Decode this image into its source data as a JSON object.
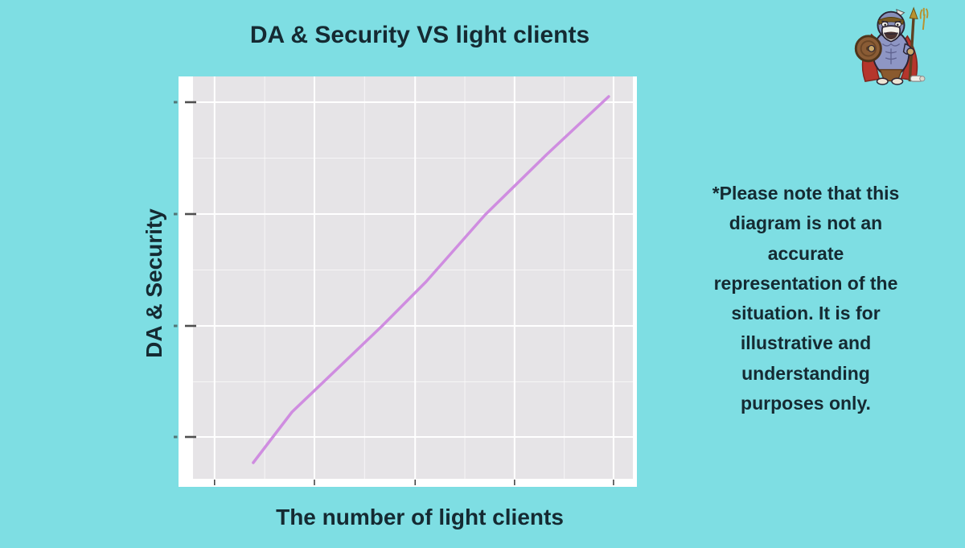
{
  "page": {
    "background": "#7EDEE3",
    "text_color": "#152A32"
  },
  "header": {
    "title": "DA & Security VS light clients"
  },
  "chart": {
    "xlabel": "The number of light clients",
    "ylabel": "DA & Security",
    "panel_bg": "#E6E4E7",
    "grid_color": "#FFFFFF",
    "line_color": "#CF8DE0",
    "tick_color": "#3C3C3C"
  },
  "note": {
    "lines": [
      "*Please note that this",
      "diagram is not an",
      "accurate",
      "representation of the",
      "situation. It is for",
      "illustrative and",
      "understanding",
      "purposes only."
    ]
  },
  "icons": {
    "mascot": "warrior-penguin-mascot"
  },
  "chart_data": {
    "type": "line",
    "title": "DA & Security VS light clients",
    "xlabel": "The number of light clients",
    "ylabel": "DA & Security",
    "xlim": [
      0,
      100
    ],
    "ylim": [
      0,
      100
    ],
    "grid": true,
    "legend": "none",
    "axis_tick_labels_visible": false,
    "x": [
      13.7,
      22.5,
      43.0,
      53.0,
      66.4,
      80.4,
      94.5
    ],
    "series": [
      {
        "name": "DA & Security",
        "values": [
          4.0,
          16.6,
          38.0,
          49.0,
          65.6,
          80.6,
          95.0
        ]
      }
    ],
    "grid_fractions": {
      "x_major": [
        0.049,
        0.276,
        0.505,
        0.731,
        0.956
      ],
      "x_minor": [
        0.163,
        0.39,
        0.618,
        0.844
      ],
      "y_major": [
        0.064,
        0.342,
        0.62,
        0.896
      ],
      "y_minor": [
        0.203,
        0.481,
        0.759
      ]
    }
  }
}
